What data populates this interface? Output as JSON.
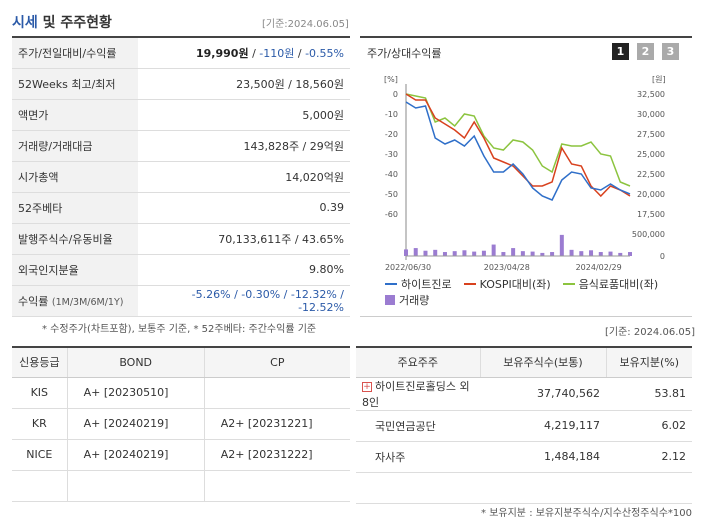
{
  "header": {
    "title_main": "시세",
    "title_rest": "및 주주현황",
    "date": "[기준:2024.06.05]"
  },
  "market": {
    "rows": [
      {
        "label": "주가/전일대비/수익률"
      },
      {
        "label": "52Weeks 최고/최저",
        "value": "23,500원 / 18,560원"
      },
      {
        "label": "액면가",
        "value": "5,000원"
      },
      {
        "label": "거래량/거래대금",
        "value": "143,828주 / 29억원"
      },
      {
        "label": "시가총액",
        "value": "14,020억원"
      },
      {
        "label": "52주베타",
        "value": "0.39"
      },
      {
        "label": "발행주식수/유동비율",
        "value": "70,133,611주 / 43.65%"
      },
      {
        "label": "외국인지분율",
        "value": "9.80%"
      },
      {
        "label": "수익률",
        "label_small": "(1M/3M/6M/1Y)"
      }
    ],
    "price": "19,990원",
    "change": "-110원",
    "rate": "-0.55%",
    "returns": "-5.26% / -0.30% / -12.32% / -12.52%",
    "sep": " / "
  },
  "note1": "* 수정주가(차트포함), 보통주 기준, * 52주베타: 주간수익률 기준",
  "chart_panel": {
    "title": "주가/상대수익률",
    "pages": [
      "1",
      "2",
      "3"
    ]
  },
  "chart_data": {
    "type": "line",
    "left_axis_unit": "[%]",
    "right_axis_unit": "[원]",
    "left_ticks": [
      "0",
      "-10",
      "-20",
      "-30",
      "-40",
      "-50",
      "-60"
    ],
    "right_ticks": [
      "32,500",
      "30,000",
      "27,500",
      "25,000",
      "22,500",
      "20,000",
      "17,500"
    ],
    "volume_ticks": [
      "500,000",
      "0"
    ],
    "x_ticks": [
      "2022/06/30",
      "2023/04/28",
      "2024/02/29"
    ],
    "ylim_left": [
      -60,
      0
    ],
    "ylim_right": [
      17500,
      32500
    ],
    "series": [
      {
        "name": "하이트진로",
        "color": "#2f6fc9",
        "axis": "left",
        "values": [
          -4,
          -7,
          -6,
          -22,
          -25,
          -23,
          -26,
          -21,
          -31,
          -39,
          -39,
          -35,
          -40,
          -47,
          -51,
          -53,
          -43,
          -39,
          -40,
          -47,
          -48,
          -45,
          -48,
          -50
        ]
      },
      {
        "name": "KOSPI대비(좌)",
        "color": "#d8411e",
        "axis": "left",
        "values": [
          0,
          -3,
          -3,
          -12,
          -15,
          -18,
          -22,
          -14,
          -22,
          -32,
          -34,
          -36,
          -41,
          -46,
          -46,
          -44,
          -27,
          -35,
          -36,
          -46,
          -51,
          -46,
          -48,
          -51
        ]
      },
      {
        "name": "음식료품대비(좌)",
        "color": "#8cc43f",
        "axis": "left",
        "values": [
          0,
          -1,
          -2,
          -14,
          -12,
          -16,
          -10,
          -11,
          -21,
          -27,
          -28,
          -23,
          -24,
          -28,
          -36,
          -39,
          -25,
          -26,
          -26,
          -24,
          -30,
          -31,
          -44,
          -46
        ]
      },
      {
        "name": "거래량",
        "color": "#9b7cd1",
        "axis": "volume",
        "values": [
          150000,
          180000,
          120000,
          140000,
          90000,
          110000,
          130000,
          100000,
          120000,
          260000,
          90000,
          180000,
          110000,
          100000,
          70000,
          90000,
          480000,
          140000,
          110000,
          130000,
          90000,
          100000,
          70000,
          90000
        ]
      }
    ]
  },
  "date2": "[기준: 2024.06.05]",
  "credit": {
    "headers": [
      "신용등급",
      "BOND",
      "CP"
    ],
    "rows": [
      {
        "agency": "KIS",
        "bond": "A+ [20230510]",
        "cp": ""
      },
      {
        "agency": "KR",
        "bond": "A+ [20240219]",
        "cp": "A2+ [20231221]"
      },
      {
        "agency": "NICE",
        "bond": "A+ [20240219]",
        "cp": "A2+ [20231222]"
      }
    ]
  },
  "holders": {
    "headers": [
      "주요주주",
      "보유주식수(보통)",
      "보유지분(%)"
    ],
    "rows": [
      {
        "name": "하이트진로홀딩스 외 8인",
        "shares": "37,740,562",
        "pct": "53.81"
      },
      {
        "name": "국민연금공단",
        "shares": "4,219,117",
        "pct": "6.02"
      },
      {
        "name": "자사주",
        "shares": "1,484,184",
        "pct": "2.12"
      }
    ]
  },
  "note2": "* 보유지분 : 보유지분주식수/지수산정주식수*100"
}
